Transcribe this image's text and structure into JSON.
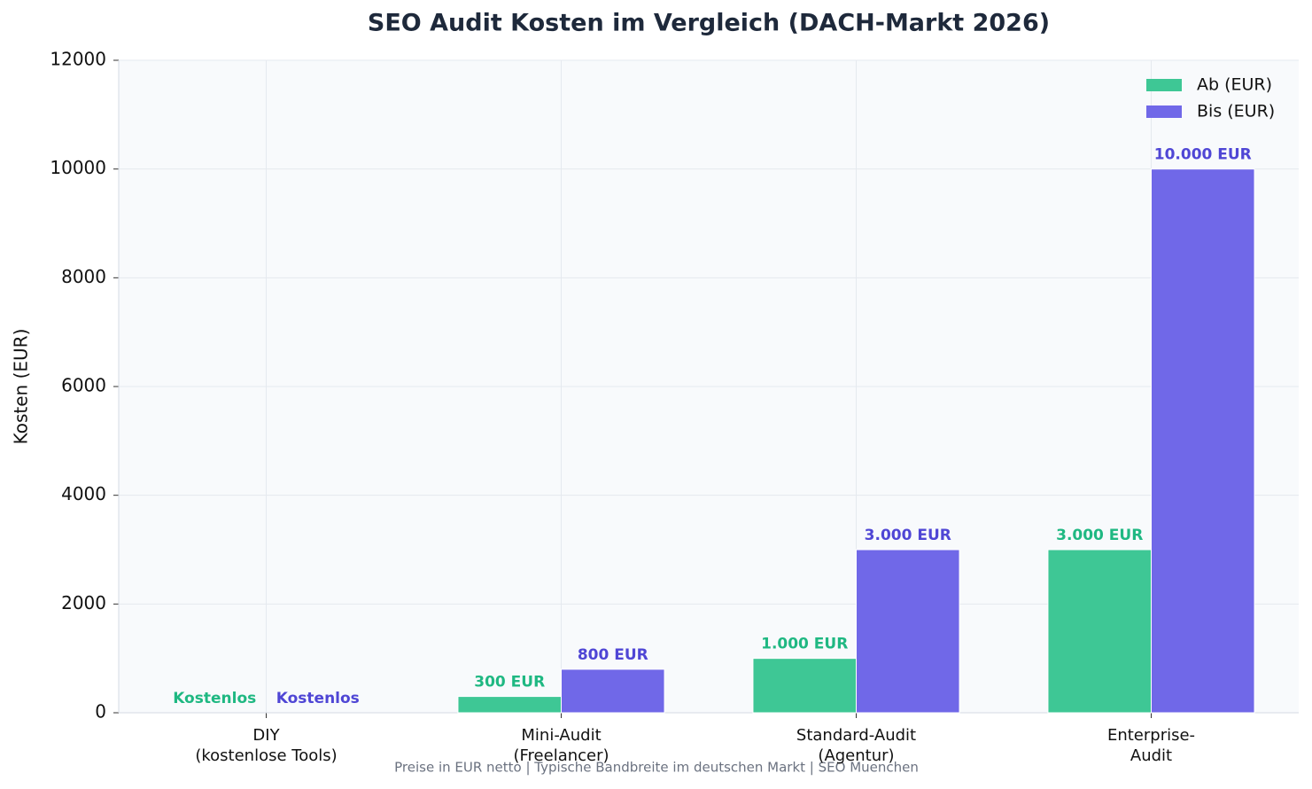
{
  "chart_data": {
    "type": "bar",
    "title": "SEO Audit Kosten im Vergleich (DACH-Markt 2026)",
    "y_label": "Kosten (EUR)",
    "footnote": "Preise in EUR netto | Typische Bandbreite im deutschen Markt | SEO Muenchen",
    "categories": [
      "DIY\n(kostenlose Tools)",
      "Mini-Audit\n(Freelancer)",
      "Standard-Audit\n(Agentur)",
      "Enterprise-\nAudit"
    ],
    "series": [
      {
        "name": "Ab (EUR)",
        "color": "#3ec795",
        "label_color": "#1fb882",
        "values": [
          0,
          300,
          1000,
          3000
        ],
        "value_labels": [
          "Kostenlos",
          "300 EUR",
          "1.000 EUR",
          "3.000 EUR"
        ]
      },
      {
        "name": "Bis (EUR)",
        "color": "#7068e8",
        "label_color": "#4f46d5",
        "values": [
          0,
          800,
          3000,
          10000
        ],
        "value_labels": [
          "Kostenlos",
          "800 EUR",
          "3.000 EUR",
          "10.000 EUR"
        ]
      }
    ],
    "ylim": [
      0,
      12000
    ],
    "yticks": [
      0,
      2000,
      4000,
      6000,
      8000,
      10000,
      12000
    ],
    "grid": true,
    "legend": "upper right"
  }
}
